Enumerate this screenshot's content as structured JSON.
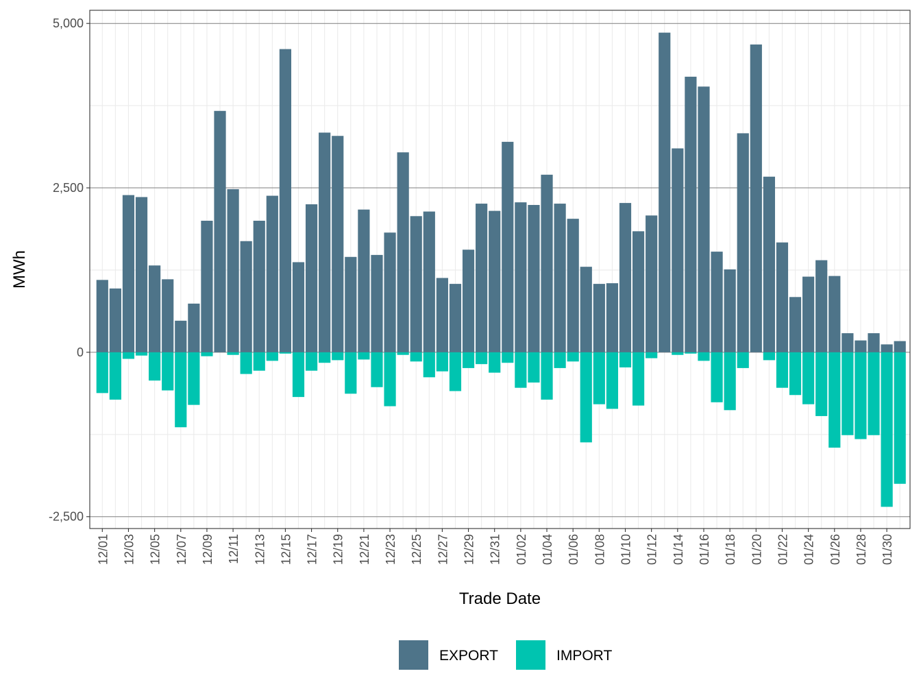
{
  "chart_data": {
    "type": "bar",
    "stacked": true,
    "xlabel": "Trade Date",
    "ylabel": "MWh",
    "ylim": [
      -2680,
      5200
    ],
    "yticks": [
      -2500,
      0,
      2500,
      5000
    ],
    "ytick_labels": [
      "-2,500",
      "0",
      "2,500",
      "5,000"
    ],
    "grid": true,
    "legend_position": "bottom",
    "categories": [
      "12/01",
      "12/02",
      "12/03",
      "12/04",
      "12/05",
      "12/06",
      "12/07",
      "12/08",
      "12/09",
      "12/10",
      "12/11",
      "12/12",
      "12/13",
      "12/14",
      "12/15",
      "12/16",
      "12/17",
      "12/18",
      "12/19",
      "12/20",
      "12/21",
      "12/22",
      "12/23",
      "12/24",
      "12/25",
      "12/26",
      "12/27",
      "12/28",
      "12/29",
      "12/30",
      "12/31",
      "01/01",
      "01/02",
      "01/03",
      "01/04",
      "01/05",
      "01/06",
      "01/07",
      "01/08",
      "01/09",
      "01/10",
      "01/11",
      "01/12",
      "01/13",
      "01/14",
      "01/15",
      "01/16",
      "01/17",
      "01/18",
      "01/19",
      "01/20",
      "01/21",
      "01/22",
      "01/23",
      "01/24",
      "01/25",
      "01/26",
      "01/27",
      "01/28",
      "01/29",
      "01/30",
      "01/31"
    ],
    "tick_labels": [
      "12/01",
      "12/03",
      "12/05",
      "12/07",
      "12/09",
      "12/11",
      "12/13",
      "12/15",
      "12/17",
      "12/19",
      "12/21",
      "12/23",
      "12/25",
      "12/27",
      "12/29",
      "12/31",
      "01/02",
      "01/04",
      "01/06",
      "01/08",
      "01/10",
      "01/12",
      "01/14",
      "01/16",
      "01/18",
      "01/20",
      "01/22",
      "01/24",
      "01/26",
      "01/28",
      "01/30"
    ],
    "series": [
      {
        "name": "EXPORT",
        "color": "#4e7489",
        "values": [
          1100,
          970,
          2390,
          2360,
          1320,
          1110,
          480,
          740,
          2000,
          3670,
          2480,
          1690,
          2000,
          2380,
          4610,
          1370,
          2250,
          3340,
          3290,
          1450,
          2170,
          1480,
          1820,
          3040,
          2070,
          2140,
          1130,
          1040,
          1560,
          2260,
          2150,
          3200,
          2280,
          2240,
          2700,
          2260,
          2030,
          1300,
          1040,
          1050,
          2270,
          1840,
          2080,
          4860,
          3100,
          4190,
          4040,
          1530,
          1260,
          3330,
          4680,
          2670,
          1670,
          840,
          1150,
          1400,
          1160,
          290,
          180,
          290,
          120,
          170
        ]
      },
      {
        "name": "IMPORT",
        "color": "#00c4b0",
        "values": [
          -620,
          -720,
          -100,
          -50,
          -430,
          -580,
          -1140,
          -800,
          -60,
          0,
          -40,
          -330,
          -280,
          -130,
          -20,
          -680,
          -280,
          -160,
          -120,
          -630,
          -110,
          -530,
          -820,
          -40,
          -140,
          -380,
          -290,
          -590,
          -240,
          -180,
          -310,
          -160,
          -540,
          -460,
          -720,
          -240,
          -140,
          -1370,
          -790,
          -860,
          -230,
          -810,
          -90,
          0,
          -40,
          -20,
          -130,
          -760,
          -880,
          -240,
          0,
          -120,
          -540,
          -650,
          -790,
          -970,
          -1450,
          -1260,
          -1320,
          -1260,
          -2350,
          -2000
        ]
      }
    ]
  }
}
